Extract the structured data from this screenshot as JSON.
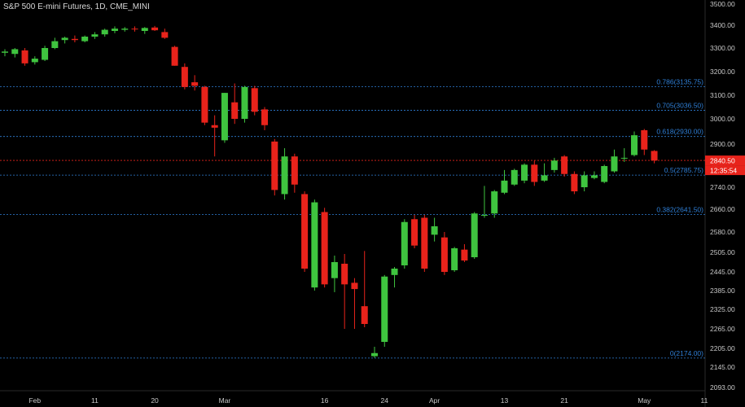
{
  "header": {
    "title": "S&P 500 E-mini Futures, 1D, CME_MINI"
  },
  "colors": {
    "background": "#000000",
    "up": "#3fc43f",
    "down": "#e8231b",
    "fib": "#2f7fd6",
    "price_line": "#e8231b",
    "axis_text": "#c8c8c8"
  },
  "chart_data": {
    "type": "candlestick",
    "title": "S&P 500 E-mini Futures, 1D, CME_MINI",
    "ylim": [
      2093,
      3500
    ],
    "y_axis_labels": [
      "3500.00",
      "3400.00",
      "3300.00",
      "3200.00",
      "3100.00",
      "3000.00",
      "2900.00",
      "2820.00",
      "2740.00",
      "2660.00",
      "2580.00",
      "2505.00",
      "2445.00",
      "2385.00",
      "2325.00",
      "2265.00",
      "2205.00",
      "2145.00",
      "2093.00"
    ],
    "x_axis_labels": [
      {
        "label": "Feb",
        "index": 3
      },
      {
        "label": "11",
        "index": 9
      },
      {
        "label": "20",
        "index": 15
      },
      {
        "label": "Mar",
        "index": 22
      },
      {
        "label": "16",
        "index": 32
      },
      {
        "label": "24",
        "index": 38
      },
      {
        "label": "Apr",
        "index": 43
      },
      {
        "label": "13",
        "index": 50
      },
      {
        "label": "21",
        "index": 56
      },
      {
        "label": "May",
        "index": 64
      },
      {
        "label": "11",
        "index": 70
      }
    ],
    "fib_levels": [
      {
        "label": "0.786(3135.75)",
        "value": 3135.75
      },
      {
        "label": "0.705(3036.50)",
        "value": 3036.5
      },
      {
        "label": "0.618(2930.00)",
        "value": 2930.0
      },
      {
        "label": "0.5(2785.75)",
        "value": 2785.75
      },
      {
        "label": "0.382(2641.50)",
        "value": 2641.5
      },
      {
        "label": "0(2174.00)",
        "value": 2174.0
      }
    ],
    "last_price": {
      "value": 2840.5,
      "label": "2840.50",
      "countdown": "12:35:54"
    },
    "candles": [
      {
        "o": 3280,
        "h": 3295,
        "l": 3265,
        "c": 3285
      },
      {
        "o": 3275,
        "h": 3300,
        "l": 3260,
        "c": 3295
      },
      {
        "o": 3290,
        "h": 3300,
        "l": 3225,
        "c": 3235
      },
      {
        "o": 3240,
        "h": 3265,
        "l": 3230,
        "c": 3255
      },
      {
        "o": 3250,
        "h": 3310,
        "l": 3245,
        "c": 3300
      },
      {
        "o": 3300,
        "h": 3345,
        "l": 3295,
        "c": 3330
      },
      {
        "o": 3335,
        "h": 3350,
        "l": 3320,
        "c": 3345
      },
      {
        "o": 3340,
        "h": 3355,
        "l": 3325,
        "c": 3335
      },
      {
        "o": 3330,
        "h": 3355,
        "l": 3325,
        "c": 3350
      },
      {
        "o": 3350,
        "h": 3370,
        "l": 3340,
        "c": 3360
      },
      {
        "o": 3360,
        "h": 3385,
        "l": 3350,
        "c": 3380
      },
      {
        "o": 3375,
        "h": 3395,
        "l": 3365,
        "c": 3385
      },
      {
        "o": 3380,
        "h": 3392,
        "l": 3372,
        "c": 3385
      },
      {
        "o": 3385,
        "h": 3395,
        "l": 3372,
        "c": 3382
      },
      {
        "o": 3375,
        "h": 3392,
        "l": 3362,
        "c": 3388
      },
      {
        "o": 3390,
        "h": 3397,
        "l": 3375,
        "c": 3378
      },
      {
        "o": 3370,
        "h": 3385,
        "l": 3340,
        "c": 3345
      },
      {
        "o": 3305,
        "h": 3310,
        "l": 3225,
        "c": 3225
      },
      {
        "o": 3220,
        "h": 3235,
        "l": 3125,
        "c": 3135
      },
      {
        "o": 3155,
        "h": 3185,
        "l": 3120,
        "c": 3140
      },
      {
        "o": 3135,
        "h": 3140,
        "l": 2975,
        "c": 2985
      },
      {
        "o": 2975,
        "h": 3015,
        "l": 2855,
        "c": 2965
      },
      {
        "o": 2915,
        "h": 3110,
        "l": 2905,
        "c": 3110
      },
      {
        "o": 3070,
        "h": 3150,
        "l": 2980,
        "c": 3000
      },
      {
        "o": 3000,
        "h": 3140,
        "l": 2985,
        "c": 3135
      },
      {
        "o": 3130,
        "h": 3140,
        "l": 3015,
        "c": 3030
      },
      {
        "o": 3040,
        "h": 3050,
        "l": 2955,
        "c": 2975
      },
      {
        "o": 2910,
        "h": 2920,
        "l": 2710,
        "c": 2730
      },
      {
        "o": 2715,
        "h": 2885,
        "l": 2695,
        "c": 2855
      },
      {
        "o": 2855,
        "h": 2865,
        "l": 2720,
        "c": 2750
      },
      {
        "o": 2715,
        "h": 2725,
        "l": 2445,
        "c": 2455
      },
      {
        "o": 2395,
        "h": 2695,
        "l": 2385,
        "c": 2685
      },
      {
        "o": 2650,
        "h": 2665,
        "l": 2395,
        "c": 2405
      },
      {
        "o": 2425,
        "h": 2495,
        "l": 2380,
        "c": 2475
      },
      {
        "o": 2470,
        "h": 2500,
        "l": 2265,
        "c": 2405
      },
      {
        "o": 2410,
        "h": 2425,
        "l": 2265,
        "c": 2390
      },
      {
        "o": 2335,
        "h": 2510,
        "l": 2270,
        "c": 2280
      },
      {
        "o": 2180,
        "h": 2210,
        "l": 2175,
        "c": 2190
      },
      {
        "o": 2225,
        "h": 2435,
        "l": 2210,
        "c": 2430
      },
      {
        "o": 2435,
        "h": 2460,
        "l": 2395,
        "c": 2455
      },
      {
        "o": 2465,
        "h": 2625,
        "l": 2455,
        "c": 2615
      },
      {
        "o": 2625,
        "h": 2640,
        "l": 2520,
        "c": 2530
      },
      {
        "o": 2630,
        "h": 2640,
        "l": 2445,
        "c": 2455
      },
      {
        "o": 2570,
        "h": 2630,
        "l": 2545,
        "c": 2600
      },
      {
        "o": 2560,
        "h": 2580,
        "l": 2435,
        "c": 2445
      },
      {
        "o": 2450,
        "h": 2525,
        "l": 2445,
        "c": 2520
      },
      {
        "o": 2515,
        "h": 2535,
        "l": 2475,
        "c": 2480
      },
      {
        "o": 2490,
        "h": 2650,
        "l": 2485,
        "c": 2645
      },
      {
        "o": 2640,
        "h": 2745,
        "l": 2630,
        "c": 2640
      },
      {
        "o": 2645,
        "h": 2730,
        "l": 2630,
        "c": 2725
      },
      {
        "o": 2720,
        "h": 2805,
        "l": 2715,
        "c": 2765
      },
      {
        "o": 2750,
        "h": 2810,
        "l": 2745,
        "c": 2805
      },
      {
        "o": 2765,
        "h": 2830,
        "l": 2755,
        "c": 2825
      },
      {
        "o": 2825,
        "h": 2840,
        "l": 2745,
        "c": 2760
      },
      {
        "o": 2765,
        "h": 2830,
        "l": 2760,
        "c": 2785
      },
      {
        "o": 2805,
        "h": 2850,
        "l": 2795,
        "c": 2840
      },
      {
        "o": 2855,
        "h": 2860,
        "l": 2780,
        "c": 2790
      },
      {
        "o": 2790,
        "h": 2800,
        "l": 2715,
        "c": 2725
      },
      {
        "o": 2740,
        "h": 2800,
        "l": 2725,
        "c": 2785
      },
      {
        "o": 2775,
        "h": 2800,
        "l": 2770,
        "c": 2785
      },
      {
        "o": 2760,
        "h": 2825,
        "l": 2755,
        "c": 2820
      },
      {
        "o": 2800,
        "h": 2880,
        "l": 2795,
        "c": 2855
      },
      {
        "o": 2850,
        "h": 2885,
        "l": 2835,
        "c": 2850
      },
      {
        "o": 2860,
        "h": 2950,
        "l": 2855,
        "c": 2935
      },
      {
        "o": 2955,
        "h": 2960,
        "l": 2860,
        "c": 2880
      },
      {
        "o": 2875,
        "h": 2878,
        "l": 2830,
        "c": 2840
      }
    ]
  }
}
